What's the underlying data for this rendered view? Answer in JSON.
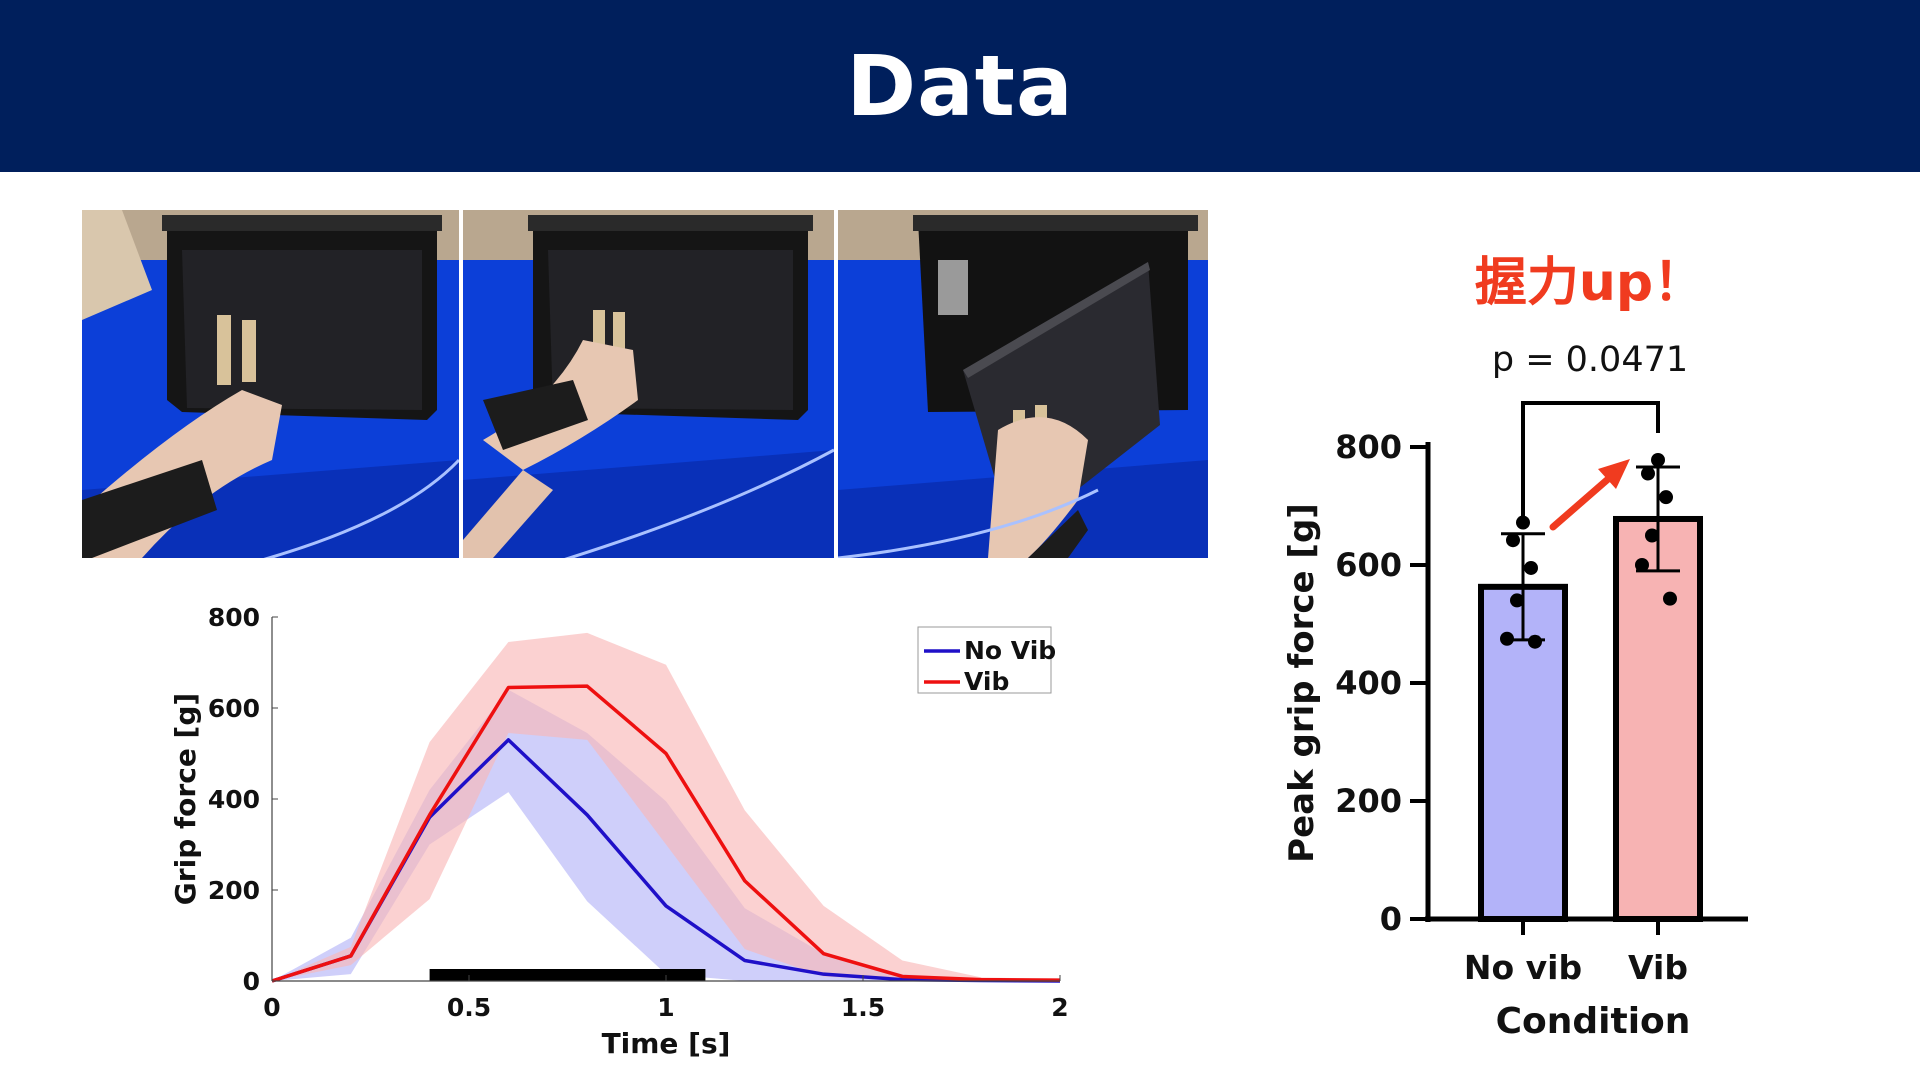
{
  "slide": {
    "title": "Data"
  },
  "photos": [
    "photo-reaching-box",
    "photo-gripping-handle",
    "photo-pulling-door-open"
  ],
  "annotation": {
    "callout": "握力up！",
    "p_value": "p = 0.0471"
  },
  "colors": {
    "header_bg": "#001f5c",
    "no_vib": "#1f10c8",
    "vib": "#ee1010",
    "no_vib_band": "#b6b6f8",
    "vib_band": "#f9b8b8",
    "callout": "#f03b1f"
  },
  "chart_data": [
    {
      "type": "line",
      "xlabel": "Time [s]",
      "ylabel": "Grip force [g]",
      "xlim": [
        0,
        2
      ],
      "ylim": [
        0,
        800
      ],
      "xticks": [
        0,
        0.5,
        1,
        1.5,
        2
      ],
      "xtick_labels": [
        "0",
        "0.5",
        "1",
        "1.5",
        "2"
      ],
      "yticks": [
        0,
        200,
        400,
        600,
        800
      ],
      "legend_position": "top-right",
      "x": [
        0,
        0.2,
        0.4,
        0.6,
        0.8,
        1.0,
        1.2,
        1.4,
        1.6,
        1.8,
        2.0
      ],
      "series": [
        {
          "name": "No Vib",
          "color": "#1f10c8",
          "values": [
            0,
            55,
            360,
            530,
            365,
            165,
            45,
            15,
            3,
            1,
            0
          ],
          "upper": [
            0,
            95,
            420,
            640,
            545,
            395,
            160,
            60,
            15,
            5,
            2
          ],
          "lower": [
            0,
            15,
            300,
            415,
            175,
            15,
            0,
            0,
            0,
            0,
            0
          ]
        },
        {
          "name": "Vib",
          "color": "#ee1010",
          "values": [
            0,
            55,
            365,
            645,
            648,
            500,
            220,
            60,
            10,
            3,
            2
          ],
          "upper": [
            0,
            75,
            525,
            745,
            765,
            695,
            375,
            165,
            45,
            8,
            4
          ],
          "lower": [
            0,
            35,
            180,
            545,
            530,
            300,
            70,
            10,
            0,
            0,
            0
          ]
        }
      ],
      "stimulus_bar": {
        "start": 0.4,
        "end": 1.1
      }
    },
    {
      "type": "bar",
      "xlabel": "Condition",
      "ylabel": "Peak grip force [g]",
      "categories": [
        "No vib",
        "Vib"
      ],
      "ylim": [
        0,
        800
      ],
      "yticks": [
        0,
        200,
        400,
        600,
        800
      ],
      "values": [
        563,
        678
      ],
      "sd": [
        90,
        88
      ],
      "colors": [
        "#b3b3f9",
        "#f7b3b3"
      ],
      "points": [
        [
          672,
          642,
          595,
          540,
          475,
          470
        ],
        [
          778,
          755,
          715,
          650,
          600,
          543
        ]
      ]
    }
  ]
}
